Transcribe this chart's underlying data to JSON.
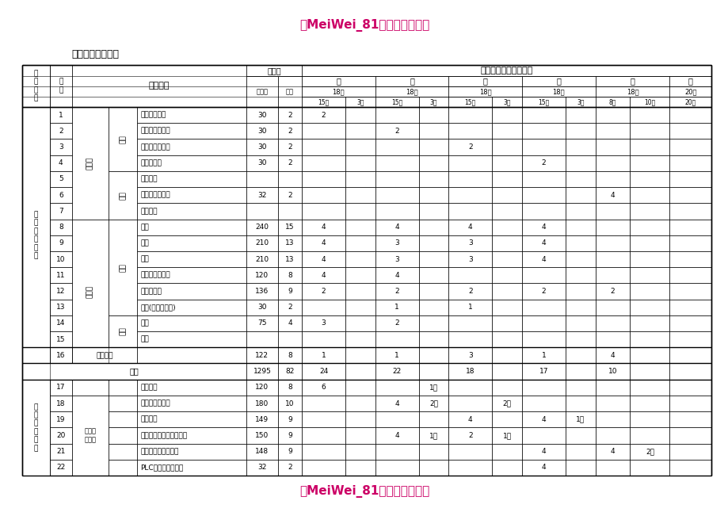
{
  "title_top": "「MeiWei_81重点借鉴文档」",
  "title_bottom": "「MeiWei_81重点借鉴文档」",
  "section_title": "七、教学进程安排",
  "title_color": "#cc0066",
  "bg_color": "#ffffff",
  "rows": [
    {
      "no": "1",
      "name": "职业生涯规划",
      "total": "30",
      "credit": "2",
      "t1a": "2",
      "t1b": "",
      "t2a": "",
      "t2b": "",
      "t3a": "",
      "t3b": "",
      "t4a": "",
      "t4b": "",
      "t5a": "",
      "t5b": "",
      "t6": ""
    },
    {
      "no": "2",
      "name": "职业道德与法律",
      "total": "30",
      "credit": "2",
      "t1a": "",
      "t1b": "",
      "t2a": "2",
      "t2b": "",
      "t3a": "",
      "t3b": "",
      "t4a": "",
      "t4b": "",
      "t5a": "",
      "t5b": "",
      "t6": ""
    },
    {
      "no": "3",
      "name": "经济政治与社会",
      "total": "30",
      "credit": "2",
      "t1a": "",
      "t1b": "",
      "t2a": "",
      "t2b": "",
      "t3a": "2",
      "t3b": "",
      "t4a": "",
      "t4b": "",
      "t5a": "",
      "t5b": "",
      "t6": ""
    },
    {
      "no": "4",
      "name": "哲学与人生",
      "total": "30",
      "credit": "2",
      "t1a": "",
      "t1b": "",
      "t2a": "",
      "t2b": "",
      "t3a": "",
      "t3b": "",
      "t4a": "2",
      "t4b": "",
      "t5a": "",
      "t5b": "",
      "t6": ""
    },
    {
      "no": "5",
      "name": "心理健康",
      "total": "",
      "credit": "",
      "t1a": "",
      "t1b": "",
      "t2a": "",
      "t2b": "",
      "t3a": "",
      "t3b": "",
      "t4a": "",
      "t4b": "",
      "t5a": "",
      "t5b": "",
      "t6": ""
    },
    {
      "no": "6",
      "name": "职业健康与安全",
      "total": "32",
      "credit": "2",
      "t1a": "",
      "t1b": "",
      "t2a": "",
      "t2b": "",
      "t3a": "",
      "t3b": "",
      "t4a": "",
      "t4b": "",
      "t5a": "4",
      "t5b": "",
      "t6": ""
    },
    {
      "no": "7",
      "name": "环保教育",
      "total": "",
      "credit": "",
      "t1a": "",
      "t1b": "",
      "t2a": "",
      "t2b": "",
      "t3a": "",
      "t3b": "",
      "t4a": "",
      "t4b": "",
      "t5a": "",
      "t5b": "",
      "t6": ""
    },
    {
      "no": "8",
      "name": "语文",
      "total": "240",
      "credit": "15",
      "t1a": "4",
      "t1b": "",
      "t2a": "4",
      "t2b": "",
      "t3a": "4",
      "t3b": "",
      "t4a": "4",
      "t4b": "",
      "t5a": "",
      "t5b": "",
      "t6": ""
    },
    {
      "no": "9",
      "name": "数学",
      "total": "210",
      "credit": "13",
      "t1a": "4",
      "t1b": "",
      "t2a": "3",
      "t2b": "",
      "t3a": "3",
      "t3b": "",
      "t4a": "4",
      "t4b": "",
      "t5a": "",
      "t5b": "",
      "t6": ""
    },
    {
      "no": "10",
      "name": "英语",
      "total": "210",
      "credit": "13",
      "t1a": "4",
      "t1b": "",
      "t2a": "3",
      "t2b": "",
      "t3a": "3",
      "t3b": "",
      "t4a": "4",
      "t4b": "",
      "t5a": "",
      "t5b": "",
      "t6": ""
    },
    {
      "no": "11",
      "name": "计算机应用基础",
      "total": "120",
      "credit": "8",
      "t1a": "4",
      "t1b": "",
      "t2a": "4",
      "t2b": "",
      "t3a": "",
      "t3b": "",
      "t4a": "",
      "t4b": "",
      "t5a": "",
      "t5b": "",
      "t6": ""
    },
    {
      "no": "12",
      "name": "体育与健康",
      "total": "136",
      "credit": "9",
      "t1a": "2",
      "t1b": "",
      "t2a": "2",
      "t2b": "",
      "t3a": "2",
      "t3b": "",
      "t4a": "2",
      "t4b": "",
      "t5a": "2",
      "t5b": "",
      "t6": ""
    },
    {
      "no": "13",
      "name": "艺术(美术、音乐)",
      "total": "30",
      "credit": "2",
      "t1a": "",
      "t1b": "",
      "t2a": "1",
      "t2b": "",
      "t3a": "1",
      "t3b": "",
      "t4a": "",
      "t4b": "",
      "t5a": "",
      "t5b": "",
      "t6": ""
    },
    {
      "no": "14",
      "name": "物理",
      "total": "75",
      "credit": "4",
      "t1a": "3",
      "t1b": "",
      "t2a": "2",
      "t2b": "",
      "t3a": "",
      "t3b": "",
      "t4a": "",
      "t4b": "",
      "t5a": "",
      "t5b": "",
      "t6": ""
    },
    {
      "no": "15",
      "name": "化学",
      "total": "",
      "credit": "",
      "t1a": "",
      "t1b": "",
      "t2a": "",
      "t2b": "",
      "t3a": "",
      "t3b": "",
      "t4a": "",
      "t4b": "",
      "t5a": "",
      "t5b": "",
      "t6": ""
    },
    {
      "no": "16",
      "name": "",
      "total": "122",
      "credit": "8",
      "t1a": "1",
      "t1b": "",
      "t2a": "1",
      "t2b": "",
      "t3a": "3",
      "t3b": "",
      "t4a": "1",
      "t4b": "",
      "t5a": "4",
      "t5b": "",
      "t6": ""
    },
    {
      "no": "合计",
      "name": "",
      "total": "1295",
      "credit": "82",
      "t1a": "24",
      "t1b": "",
      "t2a": "22",
      "t2b": "",
      "t3a": "18",
      "t3b": "",
      "t4a": "17",
      "t4b": "",
      "t5a": "10",
      "t5b": "",
      "t6": ""
    },
    {
      "no": "17",
      "name": "机械制图",
      "total": "120",
      "credit": "8",
      "t1a": "6",
      "t1b": "",
      "t2a": "",
      "t2b": "1周",
      "t3a": "",
      "t3b": "",
      "t4a": "",
      "t4b": "",
      "t5a": "",
      "t5b": "",
      "t6": ""
    },
    {
      "no": "18",
      "name": "金属加工与实训",
      "total": "180",
      "credit": "10",
      "t1a": "",
      "t1b": "",
      "t2a": "4",
      "t2b": "2周",
      "t3a": "",
      "t3b": "2周",
      "t4a": "",
      "t4b": "",
      "t5a": "",
      "t5b": "",
      "t6": ""
    },
    {
      "no": "19",
      "name": "机械基础",
      "total": "149",
      "credit": "9",
      "t1a": "",
      "t1b": "",
      "t2a": "",
      "t2b": "",
      "t3a": "4",
      "t3b": "",
      "t4a": "4",
      "t4b": "1周",
      "t5a": "",
      "t5b": "",
      "t6": ""
    },
    {
      "no": "20",
      "name": "电工电子技术基础与技能",
      "total": "150",
      "credit": "9",
      "t1a": "",
      "t1b": "",
      "t2a": "4",
      "t2b": "1周",
      "t3a": "2",
      "t3b": "1周",
      "t4a": "",
      "t4b": "",
      "t5a": "",
      "t5b": "",
      "t6": ""
    },
    {
      "no": "21",
      "name": "电气系统安装与调试",
      "total": "148",
      "credit": "9",
      "t1a": "",
      "t1b": "",
      "t2a": "",
      "t2b": "",
      "t3a": "",
      "t3b": "",
      "t4a": "4",
      "t4b": "",
      "t5a": "4",
      "t5b": "2周",
      "t6": ""
    },
    {
      "no": "22",
      "name": "PLC编程与应用技术",
      "total": "32",
      "credit": "2",
      "t1a": "",
      "t1b": "",
      "t2a": "",
      "t2b": "",
      "t3a": "",
      "t3b": "",
      "t4a": "4",
      "t4b": "",
      "t5a": "",
      "t5b": "",
      "t6": ""
    }
  ]
}
